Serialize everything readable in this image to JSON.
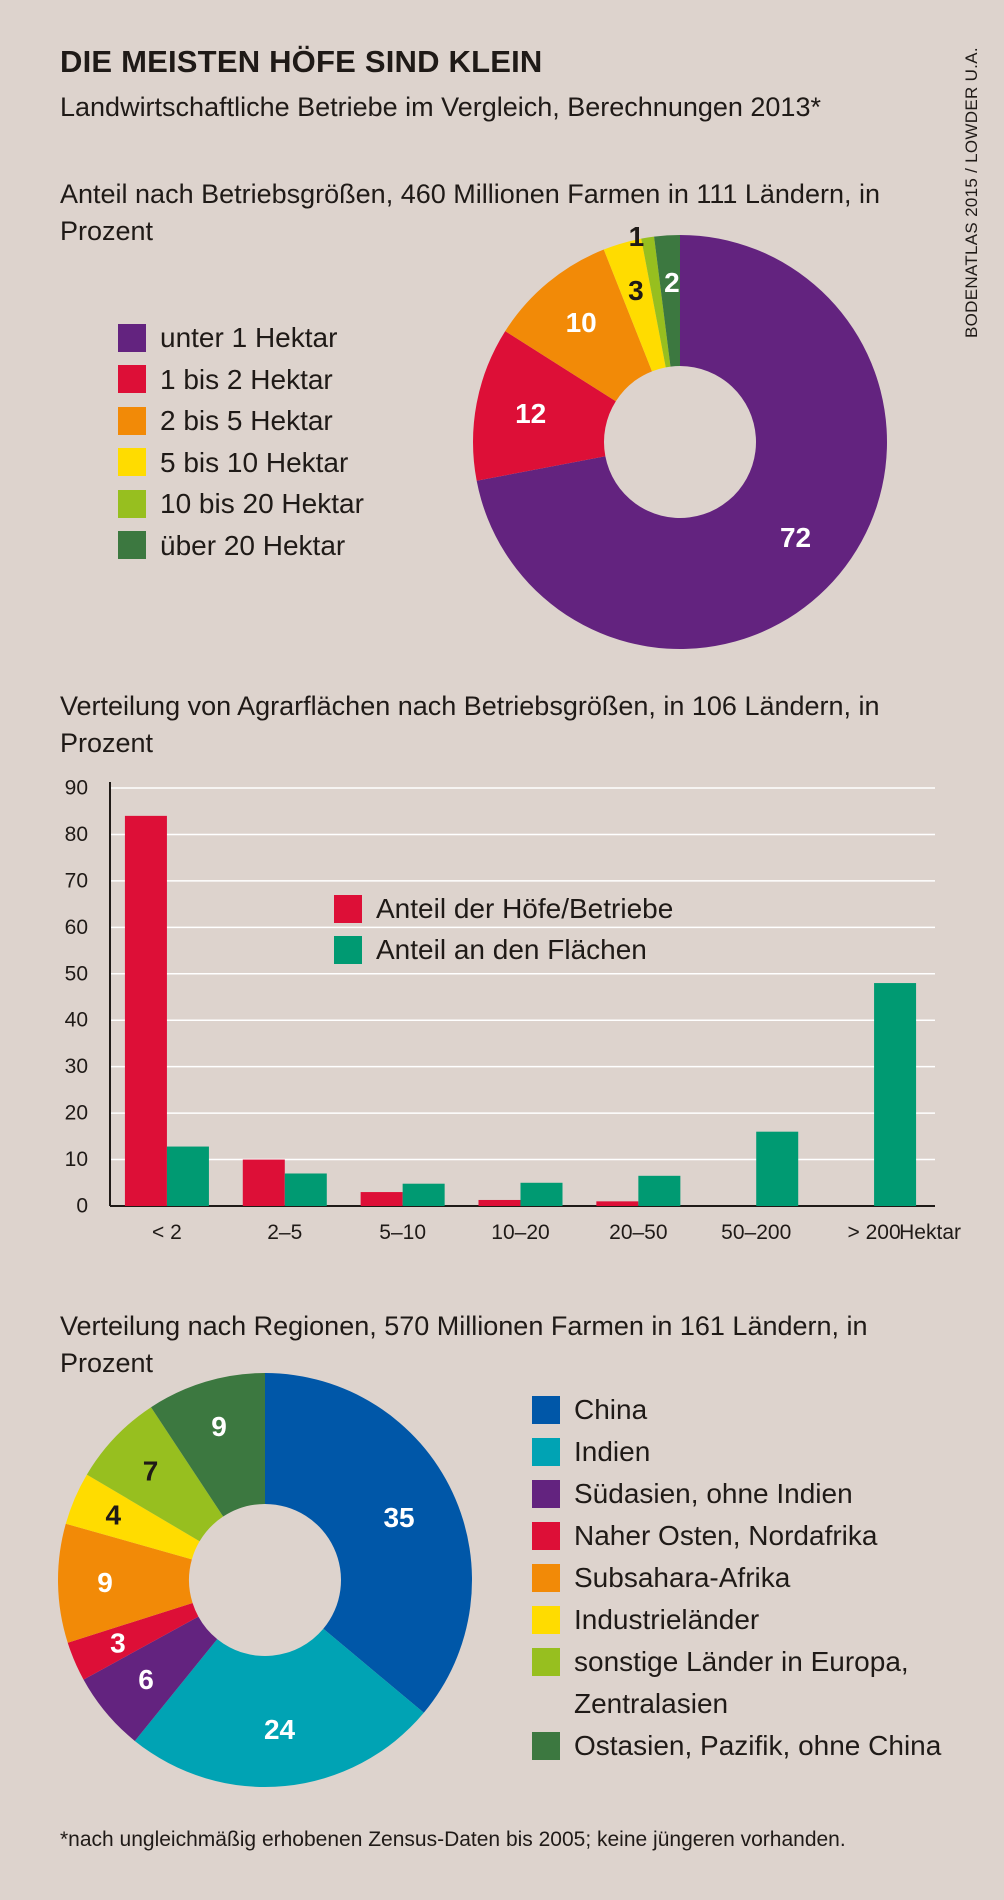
{
  "header": {
    "title": "DIE MEISTEN HÖFE SIND KLEIN",
    "subtitle": "Landwirtschaftliche Betriebe im Vergleich, Berechnungen 2013*",
    "source": "BODENATLAS 2015 / LOWDER U.A."
  },
  "footnote": "*nach ungleichmäßig erhobenen Zensus-Daten bis 2005; keine jüngeren vorhanden.",
  "chart_data": [
    {
      "type": "pie",
      "variant": "donut",
      "title": "Anteil nach Betriebsgrößen, 460 Millionen Farmen in 111 Ländern, in Prozent",
      "legend_position": "left",
      "slices": [
        {
          "label": "unter 1 Hektar",
          "value": 72,
          "color": "#63237f"
        },
        {
          "label": "1 bis 2 Hektar",
          "value": 12,
          "color": "#dd0f37"
        },
        {
          "label": "2 bis 5 Hektar",
          "value": 10,
          "color": "#f28a07"
        },
        {
          "label": "5 bis 10 Hektar",
          "value": 3,
          "color": "#ffdc00"
        },
        {
          "label": "10 bis 20 Hektar",
          "value": 1,
          "color": "#97bf1f"
        },
        {
          "label": "über 20 Hektar",
          "value": 2,
          "color": "#3c7840"
        }
      ]
    },
    {
      "type": "bar",
      "title": "Verteilung von Agrarflächen nach Betriebsgrößen, in 106 Ländern, in Prozent",
      "categories": [
        "< 2",
        "2–5",
        "5–10",
        "10–20",
        "20–50",
        "50–200",
        "> 200"
      ],
      "xunit": "Hektar",
      "ylim": [
        0,
        90
      ],
      "yticks": [
        0,
        10,
        20,
        30,
        40,
        50,
        60,
        70,
        80,
        90
      ],
      "grid": true,
      "legend_position": "center",
      "series": [
        {
          "name": "Anteil der Höfe/Betriebe",
          "color": "#dd0f37",
          "values": [
            84,
            10,
            3,
            1.3,
            1,
            0,
            0
          ]
        },
        {
          "name": "Anteil an den Flächen",
          "color": "#009a72",
          "values": [
            12.8,
            7,
            4.8,
            5,
            6.5,
            16,
            48
          ]
        }
      ]
    },
    {
      "type": "pie",
      "variant": "donut",
      "title": "Verteilung nach Regionen, 570 Millionen Farmen in 161 Ländern, in Prozent",
      "legend_position": "right",
      "slices": [
        {
          "label": "China",
          "value": 35,
          "color": "#0057a8"
        },
        {
          "label": "Indien",
          "value": 24,
          "color": "#00a3b4"
        },
        {
          "label": "Südasien, ohne Indien",
          "value": 6,
          "color": "#63237f"
        },
        {
          "label": "Naher Osten, Nordafrika",
          "value": 3,
          "color": "#dd0f37"
        },
        {
          "label": "Subsahara-Afrika",
          "value": 9,
          "color": "#f28a07"
        },
        {
          "label": "Industrieländer",
          "value": 4,
          "color": "#ffdc00"
        },
        {
          "label": "sonstige Länder in Europa, Zentralasien",
          "value": 7,
          "color": "#97bf1f"
        },
        {
          "label": "Ostasien, Pazifik, ohne China",
          "value": 9,
          "color": "#3c7840"
        }
      ]
    }
  ]
}
